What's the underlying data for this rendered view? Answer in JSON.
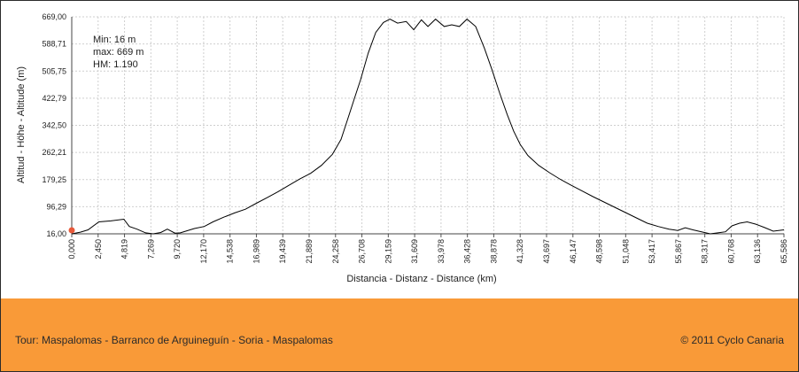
{
  "chart_data": {
    "type": "line",
    "title": "",
    "xlabel": "Distancia - Distanz - Distance (km)",
    "ylabel": "Altitud - Höhe - Altitude (m)",
    "xlim": [
      0,
      65.588
    ],
    "ylim": [
      16,
      669
    ],
    "x_ticks": [
      "0,000",
      "2,450",
      "4,819",
      "7,269",
      "9,720",
      "12,170",
      "14,538",
      "16,989",
      "19,439",
      "21,889",
      "24,258",
      "26,708",
      "29,159",
      "31,609",
      "33,978",
      "36,428",
      "38,878",
      "41,328",
      "43,697",
      "46,147",
      "48,598",
      "51,048",
      "53,417",
      "55,867",
      "58,317",
      "60,768",
      "63,136",
      "65,586"
    ],
    "y_ticks": [
      "16,00",
      "96,29",
      "179,25",
      "262,21",
      "342,50",
      "422,79",
      "505,75",
      "588,71",
      "669,00"
    ],
    "grid": true,
    "stats": {
      "min": "Min: 16 m",
      "max": "max: 669 m",
      "hm": "HM: 1.190"
    },
    "series": [
      {
        "x": [
          0,
          0.8,
          1.5,
          2.5,
          3.6,
          4.8,
          5.3,
          6.0,
          6.8,
          7.5,
          8.2,
          8.8,
          9.5,
          10.0,
          10.6,
          11.3,
          12.2,
          13.0,
          14.0,
          15.0,
          16.0,
          17.0,
          18.0,
          19.0,
          20.0,
          21.0,
          22.0,
          23.0,
          24.0,
          24.8,
          25.4,
          26.0,
          26.6,
          27.3,
          28.0,
          28.7,
          29.3,
          30.0,
          30.8,
          31.5,
          32.2,
          32.8,
          33.5,
          34.3,
          35.0,
          35.7,
          36.4,
          37.2,
          38.0,
          38.7,
          39.4,
          40.1,
          40.7,
          41.3,
          42.0,
          43.0,
          44.0,
          45.0,
          46.0,
          47.0,
          48.0,
          49.0,
          50.0,
          51.0,
          52.0,
          53.0,
          54.0,
          55.0,
          55.8,
          56.5,
          57.2,
          58.0,
          58.8,
          59.5,
          60.2,
          60.8,
          61.5,
          62.2,
          63.0,
          63.8,
          64.6,
          65.588
        ],
        "y": [
          16,
          21,
          28,
          52,
          55,
          60,
          38,
          30,
          19,
          16,
          20,
          30,
          18,
          19,
          25,
          32,
          38,
          52,
          66,
          79,
          90,
          108,
          125,
          143,
          162,
          181,
          198,
          222,
          255,
          300,
          360,
          420,
          480,
          560,
          622,
          652,
          662,
          650,
          655,
          630,
          660,
          640,
          662,
          640,
          645,
          640,
          662,
          640,
          575,
          510,
          440,
          375,
          325,
          285,
          252,
          222,
          200,
          180,
          162,
          145,
          128,
          112,
          96,
          80,
          64,
          48,
          38,
          30,
          26,
          34,
          28,
          22,
          16,
          19,
          22,
          40,
          48,
          52,
          45,
          35,
          24,
          28
        ]
      }
    ]
  },
  "footer": {
    "tour": "Tour: Maspalomas - Barranco de Arguineguín - Soria - Maspalomas",
    "copyright": "© 2011 Cyclo Canaria"
  },
  "colors": {
    "line": "#000000",
    "grid": "#cfcfcf",
    "footer": "#f99a38",
    "marker": "#e8593a"
  }
}
